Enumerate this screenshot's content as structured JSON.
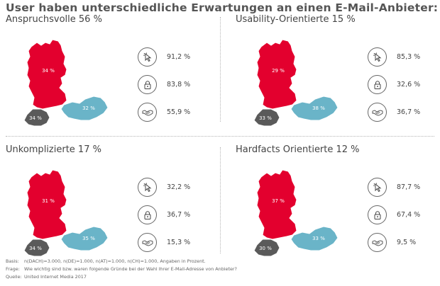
{
  "title": "User haben unterschiedliche Erwartungen an einen E-Mail-Anbieter:",
  "colors": {
    "germany": "#e3002e",
    "austria": "#6ab4c8",
    "switzerland": "#5a5a5a"
  },
  "segments": [
    {
      "title": "Anspruchsvolle 56 %",
      "de": "34 %",
      "at": "32 %",
      "ch": "34 %",
      "stats": [
        {
          "icon": "cursor-click-icon",
          "value": "91,2 %"
        },
        {
          "icon": "lock-icon",
          "value": "83,8 %"
        },
        {
          "icon": "handshake-icon",
          "value": "55,9 %"
        }
      ]
    },
    {
      "title": "Usability-Orientierte 15 %",
      "de": "29 %",
      "at": "38 %",
      "ch": "33 %",
      "stats": [
        {
          "icon": "cursor-click-icon",
          "value": "85,3 %"
        },
        {
          "icon": "lock-icon",
          "value": "32,6 %"
        },
        {
          "icon": "handshake-icon",
          "value": "36,7 %"
        }
      ]
    },
    {
      "title": "Unkomplizierte 17 %",
      "de": "31 %",
      "at": "35 %",
      "ch": "34 %",
      "stats": [
        {
          "icon": "cursor-click-icon",
          "value": "32,2 %"
        },
        {
          "icon": "lock-icon",
          "value": "36,7 %"
        },
        {
          "icon": "handshake-icon",
          "value": "15,3 %"
        }
      ]
    },
    {
      "title": "Hardfacts Orientierte 12 %",
      "de": "37 %",
      "at": "33 %",
      "ch": "30 %",
      "stats": [
        {
          "icon": "cursor-click-icon",
          "value": "87,7 %"
        },
        {
          "icon": "lock-icon",
          "value": "67,4 %"
        },
        {
          "icon": "handshake-icon",
          "value": "9,5 %"
        }
      ]
    }
  ],
  "footer": {
    "basis_label": "Basis:",
    "basis_text": "n(DACH)=3.000, n(DE)=1.000, n(AT)=1.000, n(CH)=1.000, Angaben in Prozent.",
    "frage_label": "Frage:",
    "frage_text": "Wie wichtig sind bzw. waren folgende Gründe bei der Wahl Ihrer E-Mail-Adresse von Anbieter?",
    "quelle_label": "Quelle:",
    "quelle_text": "United Internet Media 2017"
  }
}
